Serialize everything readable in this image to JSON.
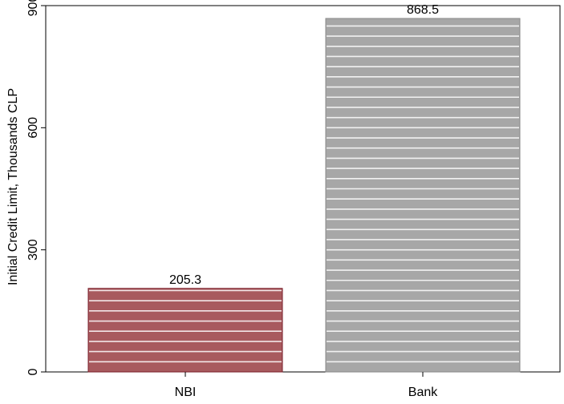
{
  "chart_data": {
    "type": "bar",
    "categories": [
      "NBI",
      "Bank"
    ],
    "values": [
      205.3,
      868.5
    ],
    "value_labels": [
      "205.3",
      "868.5"
    ],
    "ylabel": "Initial Credit Limit, Thousands CLP",
    "xlabel": "",
    "ylim": [
      0,
      900
    ],
    "yticks": [
      0,
      300,
      600,
      900
    ],
    "ytick_labels": [
      "0",
      "300",
      "600",
      "900"
    ],
    "grid": false,
    "bar_colors": [
      "#a85a5e",
      "#a7a7a7"
    ],
    "bar_edge_colors": [
      "#7a1f2b",
      "#8a8a8a"
    ],
    "bar_pattern": "horizontal white stripes"
  }
}
